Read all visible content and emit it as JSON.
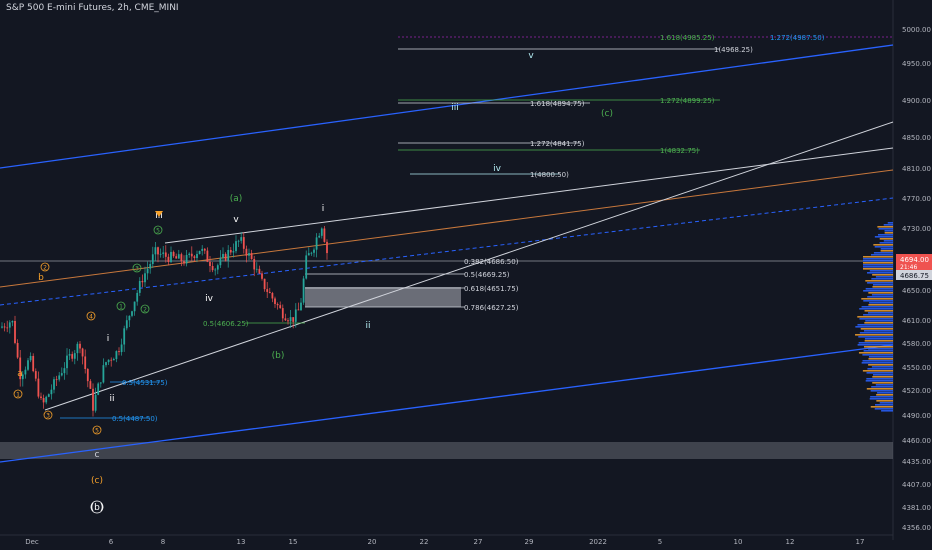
{
  "header": {
    "title": "S&P 500 E-mini Futures, 2h, CME_MINI"
  },
  "price": {
    "last": "4694.00",
    "countdown": "21:46",
    "level": "4686.75"
  },
  "colors": {
    "background": "#131722",
    "text": "#d1d4dc",
    "blue_channel": "#2962ff",
    "white_line": "#d1d4dc",
    "orange_line": "#c8783c",
    "up_candle": "#26a69a",
    "down_candle": "#ef5350",
    "fib_green": "#4caf50",
    "fib_blue": "#2196f3",
    "fib_cyan": "#b2ebf2",
    "wave_orange": "#f7a12a",
    "wave_green": "#4caf50",
    "volume_blue": "#2962ff",
    "volume_orange": "#f0a030"
  },
  "chart_data": {
    "type": "candlestick",
    "symbol": "S&P 500 E-mini Futures",
    "interval": "2h",
    "exchange": "CME_MINI",
    "x_labels": [
      "Dec",
      "6",
      "8",
      "13",
      "15",
      "20",
      "22",
      "27",
      "29",
      "2022",
      "5",
      "10",
      "12",
      "17"
    ],
    "y_ticks": [
      "5000.00",
      "4950.00",
      "4900.00",
      "4850.00",
      "4810.00",
      "4770.00",
      "4730.00",
      "4690.00",
      "4650.00",
      "4610.00",
      "4580.00",
      "4550.00",
      "4520.00",
      "4490.00",
      "4460.00",
      "4435.00",
      "4407.00",
      "4381.00",
      "4356.00"
    ],
    "approx_path": [
      {
        "t": "Dec",
        "close": 4600
      },
      {
        "t": "Dec 3",
        "close": 4500
      },
      {
        "t": "Dec 6",
        "close": 4560
      },
      {
        "t": "Dec 7",
        "close": 4655
      },
      {
        "t": "Dec 8",
        "close": 4700
      },
      {
        "t": "Dec 13",
        "close": 4710
      },
      {
        "t": "Dec 14",
        "close": 4640
      },
      {
        "t": "Dec 15",
        "close": 4610
      },
      {
        "t": "Dec 16",
        "close": 4735
      },
      {
        "t": "Dec 17",
        "close": 4694
      }
    ],
    "fib_levels": [
      {
        "label": "1.618(4985.25)",
        "group": "green"
      },
      {
        "label": "1.272(4987.50)",
        "group": "blue"
      },
      {
        "label": "1(4968.25)",
        "group": "white"
      },
      {
        "label": "1.618(4894.75)",
        "group": "white"
      },
      {
        "label": "1.272(4899.25)",
        "group": "green"
      },
      {
        "label": "1.272(4841.75)",
        "group": "white"
      },
      {
        "label": "1(4832.75)",
        "group": "green"
      },
      {
        "label": "1(4800.50)",
        "group": "white"
      },
      {
        "label": "0.382(4686.50)",
        "group": "white"
      },
      {
        "label": "0.5(4669.25)",
        "group": "white"
      },
      {
        "label": "0.618(4651.75)",
        "group": "white"
      },
      {
        "label": "0.786(4627.25)",
        "group": "white"
      },
      {
        "label": "0.5(4606.25)",
        "group": "green"
      },
      {
        "label": "0.5(4531.75)",
        "group": "blue"
      },
      {
        "label": "0.5(4487.50)",
        "group": "blue"
      }
    ],
    "wave_labels": [
      {
        "text": "v",
        "color": "cyan"
      },
      {
        "text": "iii",
        "color": "cyan"
      },
      {
        "text": "iv",
        "color": "cyan"
      },
      {
        "text": "(c)",
        "color": "green"
      },
      {
        "text": "ii",
        "color": "cyan"
      },
      {
        "text": "(a)",
        "color": "green"
      },
      {
        "text": "(b)",
        "color": "green"
      },
      {
        "text": "iii",
        "color": "white"
      },
      {
        "text": "v",
        "color": "white"
      },
      {
        "text": "i",
        "color": "white"
      },
      {
        "text": "iv",
        "color": "white"
      },
      {
        "text": "i",
        "color": "white"
      },
      {
        "text": "ii",
        "color": "white"
      },
      {
        "text": "a",
        "color": "orange"
      },
      {
        "text": "b",
        "color": "orange"
      },
      {
        "text": "c",
        "color": "white"
      },
      {
        "text": "(c)",
        "color": "orange"
      },
      {
        "text": "(b)",
        "color": "white"
      }
    ]
  }
}
